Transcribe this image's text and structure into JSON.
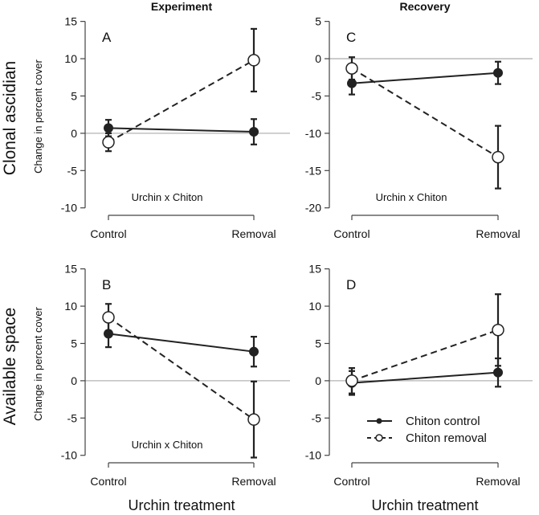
{
  "colors": {
    "axis": "#444444",
    "zero_line": "#b3b3b3",
    "series_line": "#222222",
    "filled_marker": "#222222",
    "open_marker_fill": "#ffffff"
  },
  "column_titles": [
    "Experiment",
    "Recovery"
  ],
  "row_titles": [
    "Clonal ascidian",
    "Available space"
  ],
  "x_axis_title": "Urchin treatment",
  "legend": {
    "position": "inside-bottom-right of panel D",
    "entries": [
      {
        "label": "Chiton control",
        "style": "solid line, filled circle"
      },
      {
        "label": "Chiton removal",
        "style": "dashed line, open circle"
      }
    ]
  },
  "chart_data": [
    {
      "type": "line",
      "panel": "A",
      "row_title": "Clonal ascidian",
      "column_title": "Experiment",
      "xlabel": "",
      "ylabel": "Change in percent cover",
      "categories": [
        "Control",
        "Removal"
      ],
      "ylim": [
        -11,
        15.5
      ],
      "yticks": [
        15,
        10,
        5,
        0,
        -5,
        -10
      ],
      "zero_line": true,
      "annotation": "Urchin x Chiton",
      "series": [
        {
          "name": "Chiton control",
          "values": [
            0.7,
            0.2
          ],
          "errors": [
            1.1,
            1.7
          ]
        },
        {
          "name": "Chiton removal",
          "values": [
            -1.2,
            9.8
          ],
          "errors": [
            1.2,
            4.2
          ]
        }
      ]
    },
    {
      "type": "line",
      "panel": "C",
      "row_title": "Clonal ascidian",
      "column_title": "Recovery",
      "xlabel": "",
      "ylabel": "",
      "categories": [
        "Control",
        "Removal"
      ],
      "ylim": [
        -21,
        5.5
      ],
      "yticks": [
        5,
        0,
        -5,
        -10,
        -15,
        -20
      ],
      "zero_line": true,
      "annotation": "Urchin x Chiton",
      "series": [
        {
          "name": "Chiton control",
          "values": [
            -3.3,
            -1.9
          ],
          "errors": [
            1.5,
            1.5
          ]
        },
        {
          "name": "Chiton removal",
          "values": [
            -1.3,
            -13.2
          ],
          "errors": [
            1.5,
            4.2
          ]
        }
      ]
    },
    {
      "type": "line",
      "panel": "B",
      "row_title": "Available space",
      "column_title": "Experiment",
      "xlabel": "Urchin treatment",
      "ylabel": "Change in percent cover",
      "categories": [
        "Control",
        "Removal"
      ],
      "ylim": [
        -11,
        15.5
      ],
      "yticks": [
        15,
        10,
        5,
        0,
        -5,
        -10
      ],
      "zero_line": true,
      "annotation": "Urchin x Chiton",
      "series": [
        {
          "name": "Chiton control",
          "values": [
            6.3,
            3.9
          ],
          "errors": [
            1.8,
            2.0
          ]
        },
        {
          "name": "Chiton removal",
          "values": [
            8.5,
            -5.2
          ],
          "errors": [
            1.8,
            5.1
          ]
        }
      ]
    },
    {
      "type": "line",
      "panel": "D",
      "row_title": "Available space",
      "column_title": "Recovery",
      "xlabel": "Urchin treatment",
      "ylabel": "",
      "categories": [
        "Control",
        "Removal"
      ],
      "ylim": [
        -11,
        15.5
      ],
      "yticks": [
        15,
        10,
        5,
        0,
        -5,
        -10
      ],
      "zero_line": true,
      "annotation": "",
      "series": [
        {
          "name": "Chiton control",
          "values": [
            -0.3,
            1.1
          ],
          "errors": [
            1.6,
            1.9
          ]
        },
        {
          "name": "Chiton removal",
          "values": [
            0.0,
            6.8
          ],
          "errors": [
            1.7,
            4.8
          ]
        }
      ]
    }
  ]
}
